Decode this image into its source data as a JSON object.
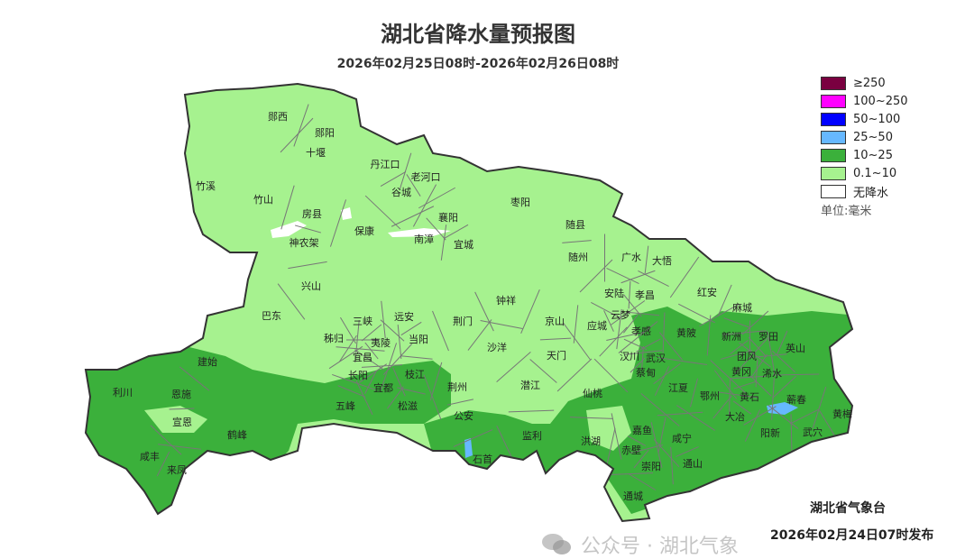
{
  "title": "湖北省降水量预报图",
  "subtitle": "2026年02月25日08时-2026年02月26日08时",
  "legend": {
    "items": [
      {
        "label": "≥250",
        "color": "#7a0040"
      },
      {
        "label": "100~250",
        "color": "#ff00ff"
      },
      {
        "label": "50~100",
        "color": "#0000ff"
      },
      {
        "label": "25~50",
        "color": "#66b8ff"
      },
      {
        "label": "10~25",
        "color": "#3bb03b"
      },
      {
        "label": "0.1~10",
        "color": "#a6f28f"
      },
      {
        "label": "无降水",
        "color": "#ffffff"
      }
    ],
    "unit": "单位:毫米"
  },
  "counties": [
    "郧西",
    "郧阳",
    "十堰",
    "丹江口",
    "老河口",
    "谷城",
    "竹溪",
    "竹山",
    "房县",
    "枣阳",
    "随县",
    "襄阳",
    "保康",
    "南漳",
    "宜城",
    "神农架",
    "随州",
    "广水",
    "大悟",
    "兴山",
    "钟祥",
    "安陆",
    "孝昌",
    "红安",
    "麻城",
    "巴东",
    "三峡",
    "远安",
    "荆门",
    "京山",
    "应城",
    "云梦",
    "孝感",
    "黄陂",
    "新洲",
    "团风",
    "罗田",
    "英山",
    "秭归",
    "夷陵",
    "当阳",
    "沙洋",
    "天门",
    "汉川",
    "武汉",
    "建始",
    "宜昌",
    "长阳",
    "蔡甸",
    "黄冈",
    "浠水",
    "利川",
    "恩施",
    "宜都",
    "枝江",
    "荆州",
    "潜江",
    "仙桃",
    "江夏",
    "鄂州",
    "黄石",
    "蕲春",
    "五峰",
    "松滋",
    "宣恩",
    "鹤峰",
    "公安",
    "嘉鱼",
    "咸宁",
    "大冶",
    "阳新",
    "武穴",
    "黄梅",
    "咸丰",
    "监利",
    "洪湖",
    "石首",
    "赤壁",
    "崇阳",
    "通山",
    "来凤",
    "通城"
  ],
  "issuer": "湖北省气象台",
  "issued_time": "2026年02月24日07时发布",
  "watermark": "公众号 · 湖北气象"
}
